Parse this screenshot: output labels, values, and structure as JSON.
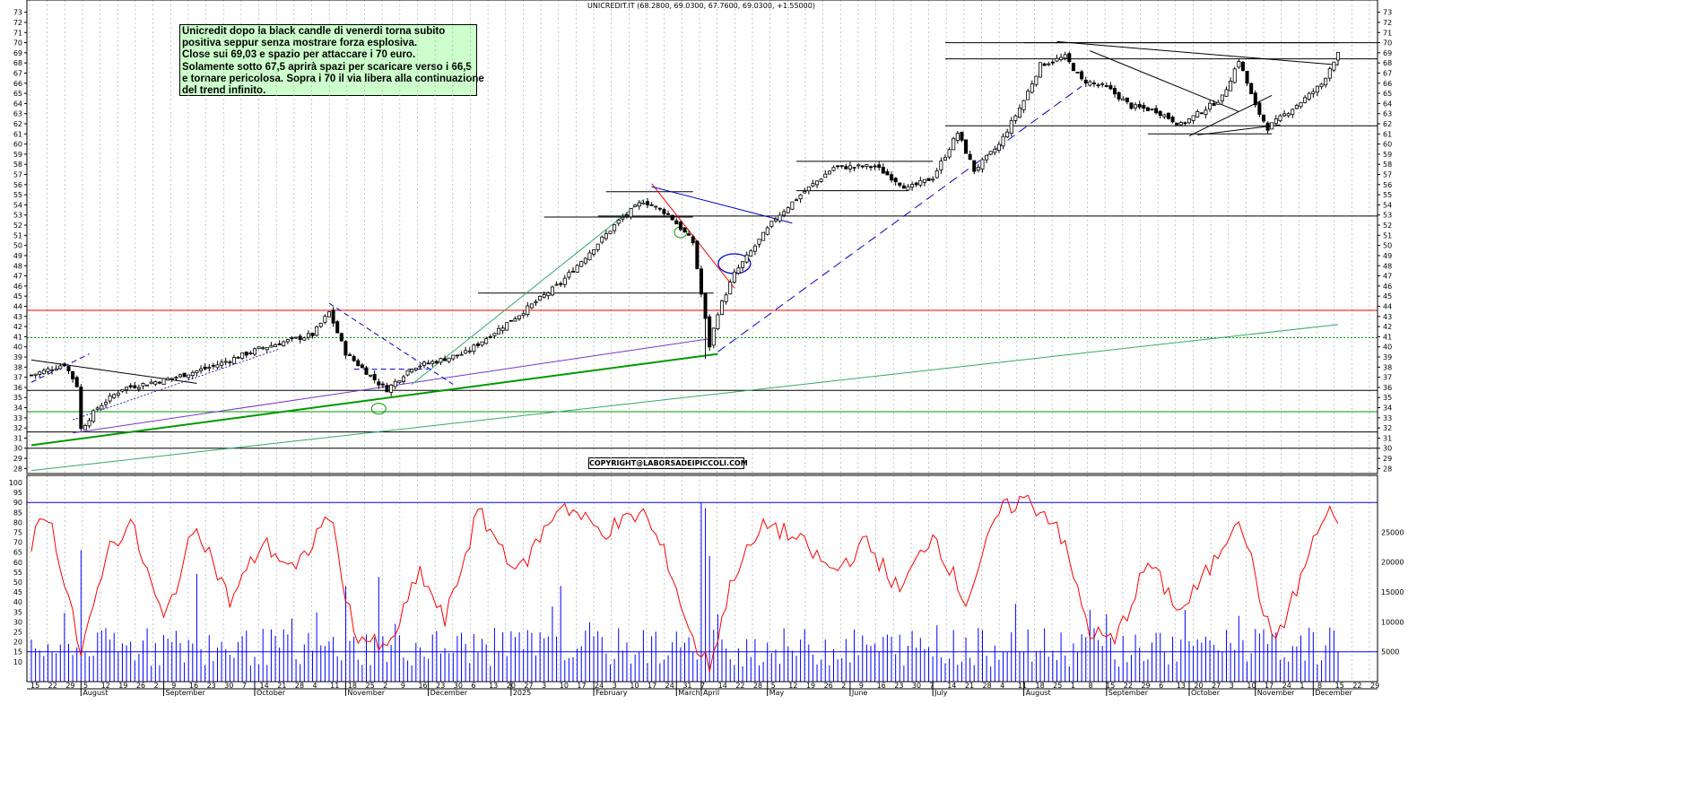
{
  "window": {
    "title": "UNICREDIT.IT (68.2800, 69.0300, 67.7600, 69.0300, +1.55000)"
  },
  "note": {
    "lines": [
      "Unicredit dopo la black candle di venerdi torna subito",
      "positiva seppur senza mostrare forza esplosiva.",
      "Close sui 69,03 e spazio per attaccare i 70 euro.",
      "Solamente sotto  67,5 aprirà spazi per scaricare verso i 66,5",
      "e tornare pericolosa. Sopra i 70 il via libera alla continuazione",
      "del trend infinito."
    ]
  },
  "copyright": "COPYRIGHT@LABORSADEIPICCOLI.COM",
  "colors": {
    "price": "#000000",
    "support_green": "#009900",
    "light_green_trend": "#33aa66",
    "red_level": "#ff0000",
    "blue_dashed": "#0000cc",
    "purple_trend": "#7733cc",
    "oscillator": "#ff0000",
    "volume": "#0000ff",
    "osc_band": "#0000ff"
  },
  "chart_data": [
    {
      "type": "candlestick",
      "title": "UNICREDIT.IT (68.2800, 69.0300, 67.7600, 69.0300, +1.55000)",
      "ylim": [
        27.5,
        73.5
      ],
      "y_ticks": [
        28,
        29,
        30,
        31,
        32,
        33,
        34,
        35,
        36,
        37,
        38,
        39,
        40,
        41,
        42,
        43,
        44,
        45,
        46,
        47,
        48,
        49,
        50,
        51,
        52,
        53,
        54,
        55,
        56,
        57,
        58,
        59,
        60,
        61,
        62,
        63,
        64,
        65,
        66,
        67,
        68,
        69,
        70,
        71,
        72,
        73
      ],
      "last_bar": {
        "open": 68.28,
        "high": 69.03,
        "low": 67.76,
        "close": 69.03,
        "change": 1.55
      },
      "anchors": [
        {
          "bar": 0,
          "close": 37.2
        },
        {
          "bar": 8,
          "close": 38.3
        },
        {
          "bar": 11,
          "close": 36.2
        },
        {
          "bar": 12,
          "close": 31.9
        },
        {
          "bar": 16,
          "close": 34.0
        },
        {
          "bar": 22,
          "close": 35.9
        },
        {
          "bar": 34,
          "close": 36.9
        },
        {
          "bar": 44,
          "close": 38.1
        },
        {
          "bar": 55,
          "close": 39.8
        },
        {
          "bar": 62,
          "close": 40.6
        },
        {
          "bar": 68,
          "close": 41.2
        },
        {
          "bar": 72,
          "close": 43.4
        },
        {
          "bar": 76,
          "close": 39.4
        },
        {
          "bar": 84,
          "close": 36.4
        },
        {
          "bar": 86,
          "close": 35.8
        },
        {
          "bar": 92,
          "close": 38.0
        },
        {
          "bar": 98,
          "close": 38.6
        },
        {
          "bar": 105,
          "close": 39.4
        },
        {
          "bar": 118,
          "close": 43.2
        },
        {
          "bar": 128,
          "close": 46.3
        },
        {
          "bar": 142,
          "close": 52.4
        },
        {
          "bar": 148,
          "close": 54.4
        },
        {
          "bar": 154,
          "close": 53.1
        },
        {
          "bar": 160,
          "close": 50.3
        },
        {
          "bar": 164,
          "close": 40.1
        },
        {
          "bar": 166,
          "close": 43.4
        },
        {
          "bar": 170,
          "close": 47.2
        },
        {
          "bar": 174,
          "close": 49.4
        },
        {
          "bar": 180,
          "close": 52.7
        },
        {
          "bar": 186,
          "close": 55.0
        },
        {
          "bar": 194,
          "close": 57.7
        },
        {
          "bar": 204,
          "close": 57.8
        },
        {
          "bar": 212,
          "close": 55.6
        },
        {
          "bar": 218,
          "close": 56.7
        },
        {
          "bar": 224,
          "close": 61.1
        },
        {
          "bar": 228,
          "close": 57.4
        },
        {
          "bar": 234,
          "close": 59.9
        },
        {
          "bar": 240,
          "close": 64.3
        },
        {
          "bar": 244,
          "close": 67.8
        },
        {
          "bar": 250,
          "close": 68.6
        },
        {
          "bar": 254,
          "close": 66.3
        },
        {
          "bar": 260,
          "close": 65.6
        },
        {
          "bar": 266,
          "close": 63.7
        },
        {
          "bar": 272,
          "close": 63.3
        },
        {
          "bar": 278,
          "close": 61.9
        },
        {
          "bar": 284,
          "close": 63.5
        },
        {
          "bar": 288,
          "close": 64.6
        },
        {
          "bar": 292,
          "close": 68.3
        },
        {
          "bar": 296,
          "close": 63.7
        },
        {
          "bar": 299,
          "close": 61.6
        },
        {
          "bar": 303,
          "close": 62.9
        },
        {
          "bar": 308,
          "close": 64.5
        },
        {
          "bar": 312,
          "close": 65.9
        },
        {
          "bar": 314,
          "close": 67.5
        },
        {
          "bar": 316,
          "close": 69.03
        }
      ],
      "levels": [
        {
          "price": 70.0,
          "color": "#000000"
        },
        {
          "price": 68.4,
          "color": "#000000"
        },
        {
          "price": 61.8,
          "color": "#000000"
        },
        {
          "price": 52.9,
          "color": "#000000"
        },
        {
          "price": 43.6,
          "color": "#ff0000"
        },
        {
          "price": 40.9,
          "color": "#009900",
          "style": "dotted"
        },
        {
          "price": 35.7,
          "color": "#000000"
        },
        {
          "price": 33.6,
          "color": "#009900"
        },
        {
          "price": 31.6,
          "color": "#000000"
        },
        {
          "price": 30.0,
          "color": "#000000"
        }
      ],
      "segments": [
        {
          "price_from": 55.3,
          "price_to": 55.3,
          "bar_from": 139,
          "bar_to": 160,
          "color": "#000000"
        },
        {
          "price_from": 45.3,
          "price_to": 45.3,
          "bar_from": 108,
          "bar_to": 165,
          "color": "#000000"
        },
        {
          "price_from": 52.8,
          "price_to": 52.8,
          "bar_from": 124,
          "bar_to": 160,
          "color": "#000000"
        },
        {
          "price_from": 58.3,
          "price_to": 58.3,
          "bar_from": 185,
          "bar_to": 218,
          "color": "#000000"
        },
        {
          "price_from": 55.4,
          "price_to": 55.4,
          "bar_from": 185,
          "bar_to": 212,
          "color": "#000000"
        },
        {
          "price_from": 70.0,
          "price_to": 70.0,
          "bar_from": 240,
          "bar_to": 316,
          "color": "#000000"
        },
        {
          "price_from": 61.0,
          "price_to": 61.0,
          "bar_from": 270,
          "bar_to": 300,
          "color": "#000000"
        }
      ]
    },
    {
      "type": "line",
      "name": "",
      "ylim": [
        0,
        100
      ],
      "y_ticks": [
        10,
        15,
        20,
        25,
        30,
        35,
        40,
        45,
        50,
        55,
        60,
        65,
        70,
        75,
        80,
        85,
        90,
        95,
        100
      ],
      "band_levels": [
        90,
        15
      ],
      "anchors": [
        {
          "bar": 0,
          "value": 70
        },
        {
          "bar": 4,
          "value": 85
        },
        {
          "bar": 10,
          "value": 35
        },
        {
          "bar": 12,
          "value": 10
        },
        {
          "bar": 18,
          "value": 65
        },
        {
          "bar": 24,
          "value": 80
        },
        {
          "bar": 32,
          "value": 30
        },
        {
          "bar": 40,
          "value": 80
        },
        {
          "bar": 48,
          "value": 40
        },
        {
          "bar": 56,
          "value": 70
        },
        {
          "bar": 64,
          "value": 55
        },
        {
          "bar": 72,
          "value": 85
        },
        {
          "bar": 78,
          "value": 25
        },
        {
          "bar": 86,
          "value": 15
        },
        {
          "bar": 94,
          "value": 55
        },
        {
          "bar": 100,
          "value": 30
        },
        {
          "bar": 108,
          "value": 85
        },
        {
          "bar": 118,
          "value": 55
        },
        {
          "bar": 128,
          "value": 90
        },
        {
          "bar": 138,
          "value": 75
        },
        {
          "bar": 148,
          "value": 85
        },
        {
          "bar": 154,
          "value": 60
        },
        {
          "bar": 160,
          "value": 20
        },
        {
          "bar": 164,
          "value": 8
        },
        {
          "bar": 170,
          "value": 55
        },
        {
          "bar": 178,
          "value": 80
        },
        {
          "bar": 186,
          "value": 70
        },
        {
          "bar": 194,
          "value": 55
        },
        {
          "bar": 202,
          "value": 70
        },
        {
          "bar": 210,
          "value": 45
        },
        {
          "bar": 218,
          "value": 75
        },
        {
          "bar": 226,
          "value": 40
        },
        {
          "bar": 234,
          "value": 85
        },
        {
          "bar": 240,
          "value": 92
        },
        {
          "bar": 248,
          "value": 80
        },
        {
          "bar": 256,
          "value": 25
        },
        {
          "bar": 262,
          "value": 20
        },
        {
          "bar": 270,
          "value": 60
        },
        {
          "bar": 278,
          "value": 35
        },
        {
          "bar": 286,
          "value": 60
        },
        {
          "bar": 292,
          "value": 85
        },
        {
          "bar": 300,
          "value": 20
        },
        {
          "bar": 304,
          "value": 35
        },
        {
          "bar": 310,
          "value": 70
        },
        {
          "bar": 314,
          "value": 88
        },
        {
          "bar": 316,
          "value": 75
        }
      ]
    },
    {
      "type": "bar",
      "name": "volume",
      "ylim": [
        0,
        30000
      ],
      "y_ticks_right": [
        5000,
        10000,
        15000,
        20000,
        25000
      ],
      "spikes": [
        {
          "bar": 12,
          "value": 22000
        },
        {
          "bar": 40,
          "value": 18000
        },
        {
          "bar": 76,
          "value": 16000
        },
        {
          "bar": 84,
          "value": 17500
        },
        {
          "bar": 128,
          "value": 16000
        },
        {
          "bar": 162,
          "value": 30000
        },
        {
          "bar": 163,
          "value": 29000
        },
        {
          "bar": 164,
          "value": 21000
        },
        {
          "bar": 238,
          "value": 13000
        },
        {
          "bar": 256,
          "value": 12000
        },
        {
          "bar": 292,
          "value": 11000
        }
      ]
    }
  ],
  "x_axis": {
    "day_labels": [
      "15",
      "22",
      "29",
      "5",
      "12",
      "19",
      "26",
      "2",
      "9",
      "16",
      "23",
      "30",
      "7",
      "14",
      "21",
      "28",
      "4",
      "11",
      "18",
      "25",
      "2",
      "9",
      "16",
      "23",
      "30",
      "6",
      "13",
      "20",
      "27",
      "3",
      "10",
      "17",
      "24",
      "3",
      "10",
      "17",
      "24",
      "31",
      "7",
      "14",
      "22",
      "28",
      "5",
      "12",
      "19",
      "26",
      "2",
      "9",
      "16",
      "23",
      "30",
      "7",
      "14",
      "21",
      "28",
      "4",
      "11",
      "18",
      "25",
      "1",
      "8",
      "15",
      "22",
      "29",
      "6",
      "13",
      "20",
      "27",
      "3",
      "10",
      "17",
      "24",
      "1",
      "8",
      "15",
      "22",
      "29"
    ],
    "month_labels": [
      "August",
      "September",
      "October",
      "November",
      "December",
      "2025",
      "February",
      "March",
      "April",
      "May",
      "June",
      "July",
      "August",
      "September",
      "October",
      "November",
      "December"
    ],
    "month_bars": [
      12,
      32,
      54,
      76,
      96,
      116,
      136,
      156,
      162,
      178,
      198,
      218,
      240,
      260,
      280,
      296,
      310
    ]
  }
}
